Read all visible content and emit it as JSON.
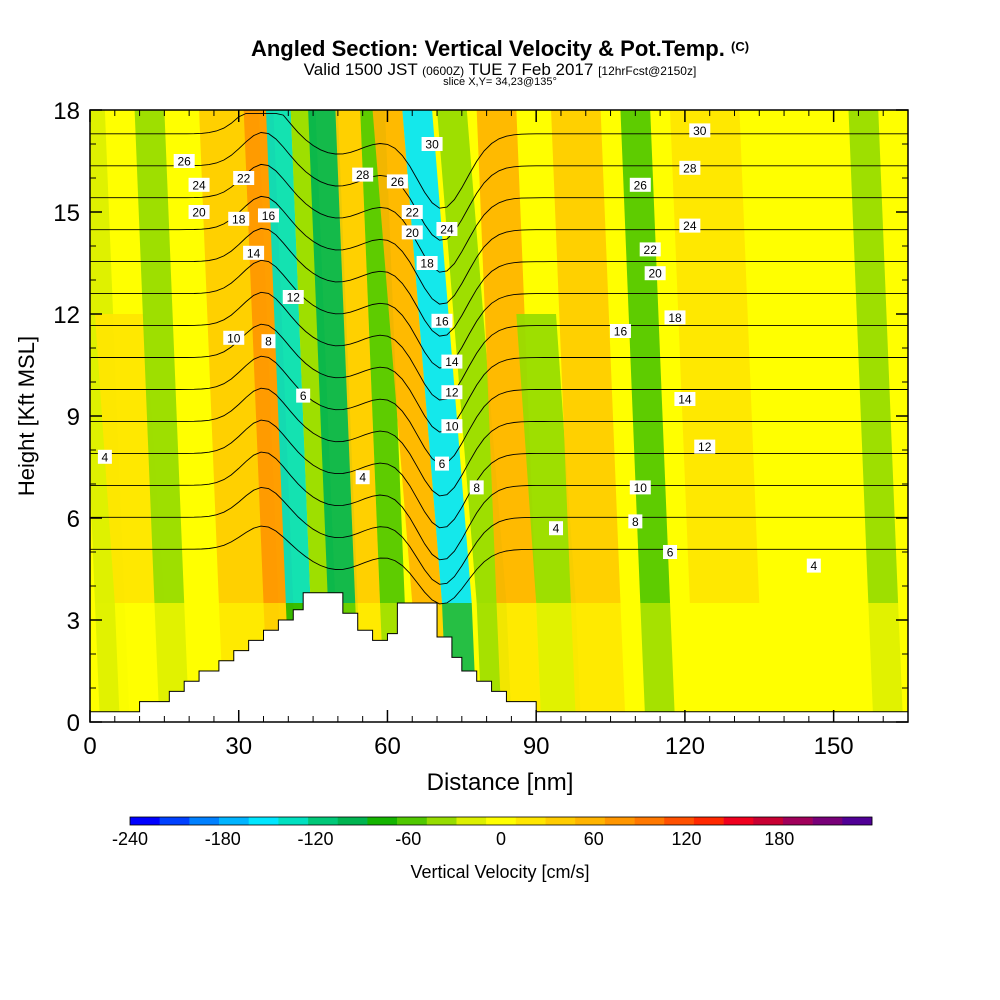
{
  "title": {
    "main": "Angled Section: Vertical Velocity & Pot.Temp.",
    "main_unit_tag": "(C)",
    "valid_prefix": "Valid 1500 JST",
    "valid_zulu": "(0600Z)",
    "valid_date": "TUE 7 Feb 2017",
    "valid_fcst": "[12hrFcst@2150z]",
    "slice": "slice X,Y= 34,23@135°"
  },
  "chart_data": {
    "type": "heatmap",
    "xlabel": "Distance [nm]",
    "ylabel": "Height [Kft MSL]",
    "xlim": [
      0,
      165
    ],
    "ylim": [
      0,
      18
    ],
    "x_ticks": [
      0,
      30,
      60,
      90,
      120,
      150
    ],
    "y_ticks": [
      0,
      3,
      6,
      9,
      12,
      15,
      18
    ],
    "colorbar": {
      "label": "Vertical Velocity [cm/s]",
      "min": -240,
      "max": 220,
      "step": 20,
      "tick_values": [
        -240,
        -180,
        -120,
        -60,
        0,
        60,
        120,
        180
      ],
      "colors": [
        "#0000ff",
        "#0040ff",
        "#0080ff",
        "#00b4ff",
        "#00e6ff",
        "#00e0c0",
        "#00c878",
        "#00b450",
        "#14b400",
        "#50c800",
        "#96dc00",
        "#dcf000",
        "#ffff00",
        "#ffe600",
        "#ffcc00",
        "#ffb400",
        "#ff9600",
        "#ff7800",
        "#ff5000",
        "#ff2800",
        "#f0001e",
        "#c80032",
        "#a0005a",
        "#780078",
        "#500096"
      ]
    },
    "velocity_bands": [
      {
        "center_nm": 2,
        "width_nm": 6,
        "velocity_cms": -20,
        "top_kft": 18
      },
      {
        "center_nm": 8,
        "width_nm": 10,
        "velocity_cms": 30,
        "top_kft": 12
      },
      {
        "center_nm": 14,
        "width_nm": 6,
        "velocity_cms": -30,
        "top_kft": 18
      },
      {
        "center_nm": 30,
        "width_nm": 12,
        "velocity_cms": 50,
        "top_kft": 18
      },
      {
        "center_nm": 36,
        "width_nm": 6,
        "velocity_cms": 90,
        "top_kft": 18
      },
      {
        "center_nm": 40,
        "width_nm": 5,
        "velocity_cms": -130,
        "top_kft": 18
      },
      {
        "center_nm": 45,
        "width_nm": 5,
        "velocity_cms": -40,
        "top_kft": 18
      },
      {
        "center_nm": 49,
        "width_nm": 6,
        "velocity_cms": -90,
        "top_kft": 18
      },
      {
        "center_nm": 54,
        "width_nm": 5,
        "velocity_cms": 40,
        "top_kft": 18
      },
      {
        "center_nm": 59,
        "width_nm": 5,
        "velocity_cms": -60,
        "top_kft": 18
      },
      {
        "center_nm": 64,
        "width_nm": 6,
        "velocity_cms": 70,
        "top_kft": 18
      },
      {
        "center_nm": 70,
        "width_nm": 6,
        "velocity_cms": -150,
        "top_kft": 18
      },
      {
        "center_nm": 77,
        "width_nm": 6,
        "velocity_cms": -40,
        "top_kft": 18
      },
      {
        "center_nm": 84,
        "width_nm": 8,
        "velocity_cms": 60,
        "top_kft": 18
      },
      {
        "center_nm": 92,
        "width_nm": 8,
        "velocity_cms": -30,
        "top_kft": 12
      },
      {
        "center_nm": 100,
        "width_nm": 10,
        "velocity_cms": 40,
        "top_kft": 18
      },
      {
        "center_nm": 112,
        "width_nm": 6,
        "velocity_cms": -50,
        "top_kft": 18
      },
      {
        "center_nm": 126,
        "width_nm": 14,
        "velocity_cms": 30,
        "top_kft": 18
      },
      {
        "center_nm": 140,
        "width_nm": 10,
        "velocity_cms": 10,
        "top_kft": 18
      },
      {
        "center_nm": 158,
        "width_nm": 6,
        "velocity_cms": -30,
        "top_kft": 18
      }
    ],
    "terrain_profile": {
      "x_nm": [
        0,
        10,
        16,
        19,
        22,
        26,
        29,
        32,
        35,
        38,
        41,
        43,
        47,
        51,
        54,
        57,
        60,
        62,
        65,
        70,
        73,
        75,
        78,
        81,
        84,
        90,
        165
      ],
      "height_kft": [
        0.3,
        0.6,
        0.9,
        1.2,
        1.5,
        1.8,
        2.1,
        2.4,
        2.7,
        3.0,
        3.3,
        3.8,
        3.8,
        3.2,
        2.7,
        2.4,
        2.6,
        3.5,
        3.5,
        2.5,
        1.9,
        1.5,
        1.2,
        0.9,
        0.6,
        0.3,
        0.3
      ]
    },
    "pot_temp_contour_labels": [
      {
        "value": "26",
        "x_nm": 19,
        "y_kft": 16.5
      },
      {
        "value": "24",
        "x_nm": 22,
        "y_kft": 15.8
      },
      {
        "value": "22",
        "x_nm": 31,
        "y_kft": 16.0
      },
      {
        "value": "20",
        "x_nm": 22,
        "y_kft": 15.0
      },
      {
        "value": "18",
        "x_nm": 30,
        "y_kft": 14.8
      },
      {
        "value": "16",
        "x_nm": 36,
        "y_kft": 14.9
      },
      {
        "value": "14",
        "x_nm": 33,
        "y_kft": 13.8
      },
      {
        "value": "12",
        "x_nm": 41,
        "y_kft": 12.5
      },
      {
        "value": "10",
        "x_nm": 29,
        "y_kft": 11.3
      },
      {
        "value": "8",
        "x_nm": 36,
        "y_kft": 11.2
      },
      {
        "value": "6",
        "x_nm": 43,
        "y_kft": 9.6
      },
      {
        "value": "4",
        "x_nm": 3,
        "y_kft": 7.8
      },
      {
        "value": "4",
        "x_nm": 55,
        "y_kft": 7.2
      },
      {
        "value": "28",
        "x_nm": 55,
        "y_kft": 16.1
      },
      {
        "value": "26",
        "x_nm": 62,
        "y_kft": 15.9
      },
      {
        "value": "22",
        "x_nm": 65,
        "y_kft": 15.0
      },
      {
        "value": "20",
        "x_nm": 65,
        "y_kft": 14.4
      },
      {
        "value": "30",
        "x_nm": 69,
        "y_kft": 17.0
      },
      {
        "value": "24",
        "x_nm": 72,
        "y_kft": 14.5
      },
      {
        "value": "18",
        "x_nm": 68,
        "y_kft": 13.5
      },
      {
        "value": "16",
        "x_nm": 71,
        "y_kft": 11.8
      },
      {
        "value": "14",
        "x_nm": 73,
        "y_kft": 10.6
      },
      {
        "value": "12",
        "x_nm": 73,
        "y_kft": 9.7
      },
      {
        "value": "10",
        "x_nm": 73,
        "y_kft": 8.7
      },
      {
        "value": "6",
        "x_nm": 71,
        "y_kft": 7.6
      },
      {
        "value": "8",
        "x_nm": 78,
        "y_kft": 6.9
      },
      {
        "value": "4",
        "x_nm": 94,
        "y_kft": 5.7
      },
      {
        "value": "30",
        "x_nm": 123,
        "y_kft": 17.4
      },
      {
        "value": "28",
        "x_nm": 121,
        "y_kft": 16.3
      },
      {
        "value": "26",
        "x_nm": 111,
        "y_kft": 15.8
      },
      {
        "value": "24",
        "x_nm": 121,
        "y_kft": 14.6
      },
      {
        "value": "22",
        "x_nm": 113,
        "y_kft": 13.9
      },
      {
        "value": "20",
        "x_nm": 114,
        "y_kft": 13.2
      },
      {
        "value": "18",
        "x_nm": 118,
        "y_kft": 11.9
      },
      {
        "value": "16",
        "x_nm": 107,
        "y_kft": 11.5
      },
      {
        "value": "14",
        "x_nm": 120,
        "y_kft": 9.5
      },
      {
        "value": "12",
        "x_nm": 124,
        "y_kft": 8.1
      },
      {
        "value": "10",
        "x_nm": 111,
        "y_kft": 6.9
      },
      {
        "value": "8",
        "x_nm": 110,
        "y_kft": 5.9
      },
      {
        "value": "6",
        "x_nm": 117,
        "y_kft": 5.0
      },
      {
        "value": "4",
        "x_nm": 146,
        "y_kft": 4.6
      }
    ],
    "contour_interval_c": 2,
    "grid": false,
    "legend": "bottom colorbar"
  }
}
